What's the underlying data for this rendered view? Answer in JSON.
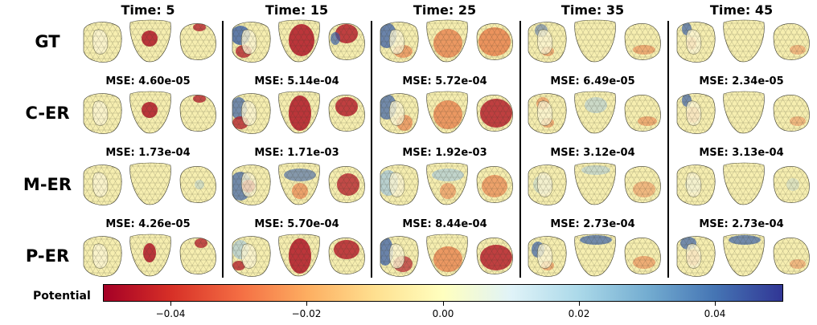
{
  "columns": [
    "Time: 5",
    "Time: 15",
    "Time: 25",
    "Time: 35",
    "Time: 45"
  ],
  "rows": [
    {
      "label": "GT",
      "mse": []
    },
    {
      "label": "C-ER",
      "mse": [
        "MSE: 4.60e-05",
        "MSE: 5.14e-04",
        "MSE: 5.72e-04",
        "MSE: 6.49e-05",
        "MSE: 2.34e-05"
      ]
    },
    {
      "label": "M-ER",
      "mse": [
        "MSE: 1.73e-04",
        "MSE: 1.71e-03",
        "MSE: 1.92e-03",
        "MSE: 3.12e-04",
        "MSE: 3.13e-04"
      ]
    },
    {
      "label": "P-ER",
      "mse": [
        "MSE: 4.26e-05",
        "MSE: 5.70e-04",
        "MSE: 8.44e-04",
        "MSE: 2.73e-04",
        "MSE: 2.73e-04"
      ]
    }
  ],
  "colorbar": {
    "label": "Potential",
    "range": [
      -0.05,
      0.05
    ],
    "ticks": [
      "−0.04",
      "−0.02",
      "0.00",
      "0.02",
      "0.04"
    ],
    "tick_values": [
      -0.04,
      -0.02,
      0.0,
      0.02,
      0.04
    ],
    "colormap": [
      "#a50026",
      "#d73027",
      "#f46d43",
      "#fdae61",
      "#fee090",
      "#ffffbf",
      "#e0f3f8",
      "#abd9e9",
      "#74add1",
      "#4575b4",
      "#313695"
    ]
  },
  "heart_colors": {
    "neutral": "#f6eeb0",
    "red": "#b5202d",
    "orange": "#e9824f",
    "blue": "#3b5fa8",
    "lightblue": "#9fc3dd",
    "edge": "#3a3a2a"
  }
}
